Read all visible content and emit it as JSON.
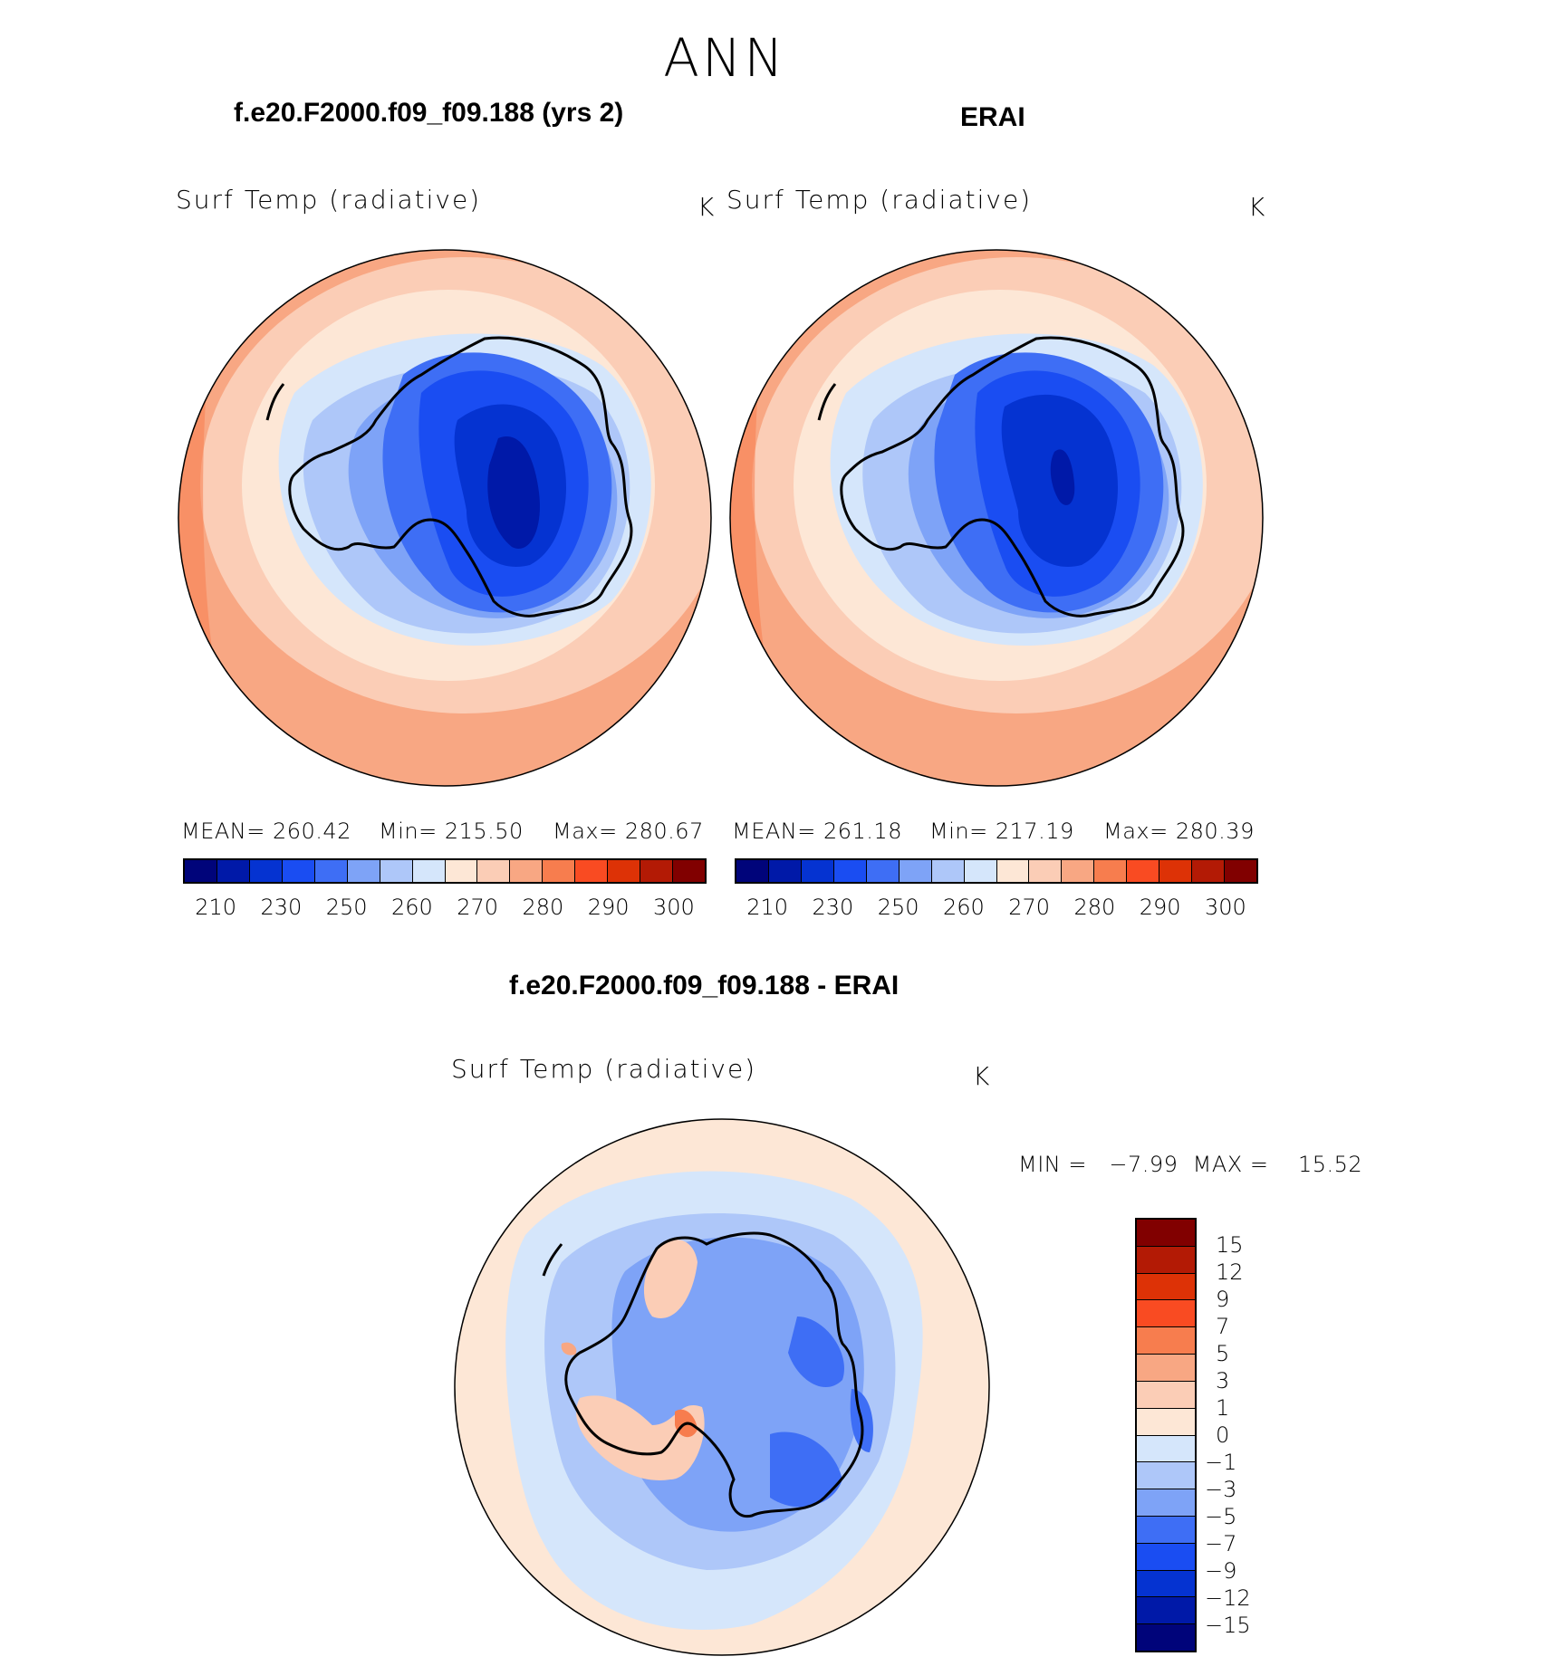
{
  "season": "ANN",
  "panels": {
    "test": {
      "case_title": "f.e20.F2000.f09_f09.188 (yrs 2)",
      "variable": "Surf Temp (radiative)",
      "units": "K",
      "stats": {
        "mean": "MEAN= 260.42",
        "min": "Min= 215.50",
        "max": "Max= 280.67"
      }
    },
    "ref": {
      "case_title": "ERAI",
      "variable": "Surf Temp (radiative)",
      "units": "K",
      "stats": {
        "mean": "MEAN= 261.18",
        "min": "Min= 217.19",
        "max": "Max= 280.39"
      }
    },
    "diff": {
      "case_title": "f.e20.F2000.f09_f09.188 - ERAI",
      "variable": "Surf Temp (radiative)",
      "units": "K",
      "minmax": "MIN =   −7.99  MAX =    15.52"
    }
  },
  "colorbar_abs": {
    "colors": [
      "#00047a",
      "#0019a8",
      "#0533d1",
      "#1a4df2",
      "#3e6ef5",
      "#7ea3f7",
      "#aec7f9",
      "#d5e6fb",
      "#fde7d6",
      "#fbcdb6",
      "#f8a783",
      "#f77d4e",
      "#f94b22",
      "#dd3206",
      "#b31a05",
      "#810000"
    ],
    "tick_labels": [
      "210",
      "230",
      "250",
      "260",
      "270",
      "280",
      "290",
      "300"
    ]
  },
  "colorbar_diff": {
    "colors_top_to_bottom": [
      "#810000",
      "#b31a05",
      "#dd3206",
      "#f94b22",
      "#f77d4e",
      "#f8a783",
      "#fbcdb6",
      "#fde7d6",
      "#d5e6fb",
      "#aec7f9",
      "#7ea3f7",
      "#3e6ef5",
      "#1a4df2",
      "#0533d1",
      "#0019a8",
      "#00047a"
    ],
    "tick_labels": [
      "15",
      "12",
      "9",
      "7",
      "5",
      "3",
      "1",
      "0",
      "−1",
      "−3",
      "−5",
      "−7",
      "−9",
      "−12",
      "−15"
    ]
  }
}
